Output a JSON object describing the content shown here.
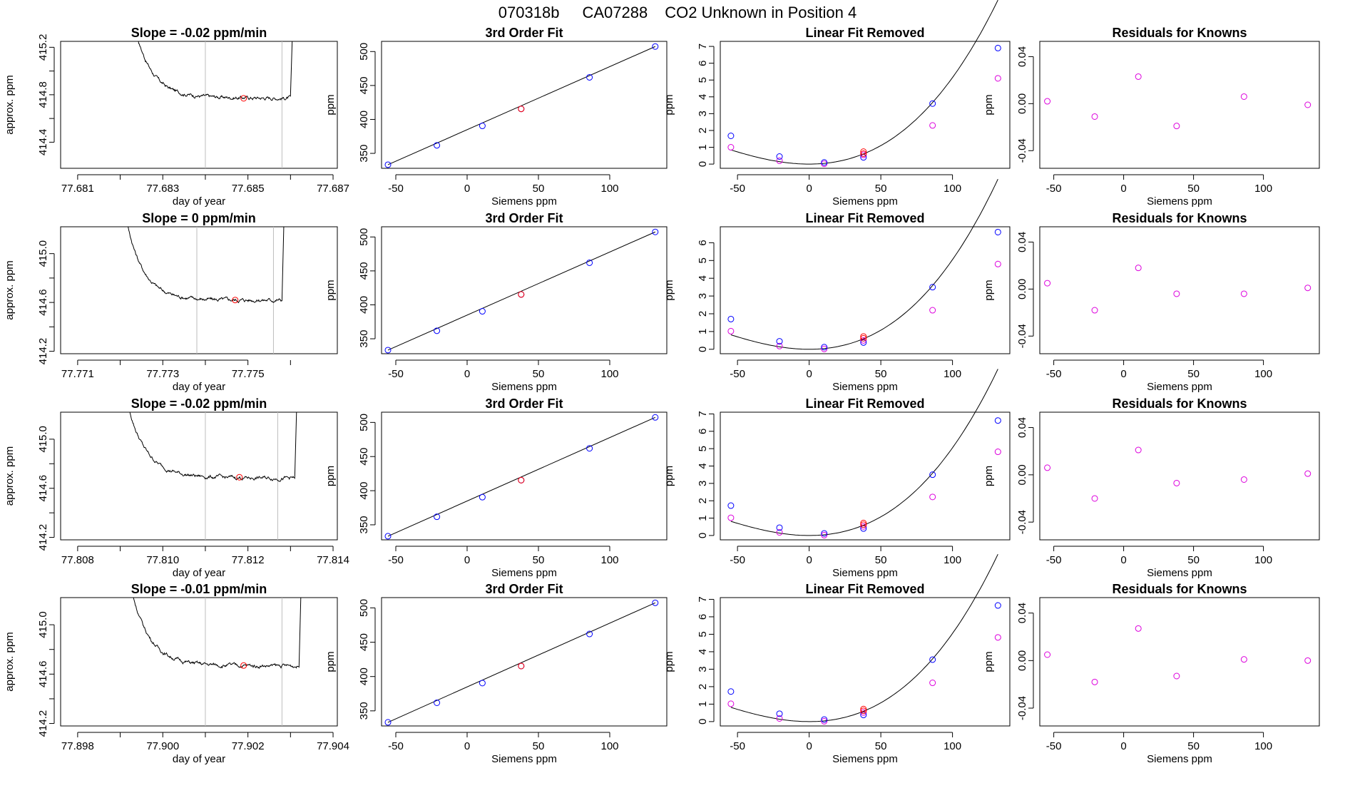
{
  "title": {
    "sample": "070318b",
    "tank": "CA07288",
    "description": "CO2 Unknown in Position  4"
  },
  "colors": {
    "blue": "#0000ff",
    "red": "#ff0000",
    "magenta": "#dd00dd",
    "gray": "#bdbdbd"
  },
  "chart_data": [
    {
      "row": 1,
      "panels": [
        {
          "type": "line",
          "title": "Slope =  -0.02  ppm/min",
          "xlabel": "day of year",
          "ylabel": "approx. ppm",
          "xlim": [
            77.6806,
            77.6871
          ],
          "ylim": [
            414.18,
            415.25
          ],
          "xticks": [
            "77.681",
            "77.683",
            "77.685",
            "77.687"
          ],
          "xtick_values": [
            77.681,
            77.683,
            77.685,
            77.687
          ],
          "minor_xticks": [
            77.682,
            77.684,
            77.686
          ],
          "yticks": [
            "414.4",
            "414.8",
            "415.2"
          ],
          "ytick_values": [
            414.4,
            414.8,
            415.2
          ],
          "extra_yticks": [
            414.6,
            415.0
          ],
          "t_start": 77.6822,
          "t_end": 77.686,
          "plateau": 414.78,
          "drop": 0.85,
          "trend": -0.02,
          "vlines": [
            77.684,
            77.6858
          ],
          "red_point": {
            "x": 77.6849,
            "y": 414.77
          }
        },
        {
          "type": "scatter",
          "title": "3rd Order Fit",
          "xlabel": "Siemens ppm",
          "ylabel": "ppm",
          "xlim": [
            -60,
            140
          ],
          "ylim": [
            328,
            515
          ],
          "xticks": [
            "-50",
            "0",
            "50",
            "100"
          ],
          "xtick_values": [
            -50,
            0,
            50,
            100
          ],
          "yticks": [
            "350",
            "400",
            "450",
            "500"
          ],
          "ytick_values": [
            350,
            400,
            450,
            500
          ],
          "knowns_x": [
            -55.5,
            -21.2,
            10.7,
            85.8,
            131.9
          ],
          "knowns_y": [
            333.3,
            361.8,
            390.5,
            462.0,
            507.4
          ],
          "unknown": {
            "x": 37.9,
            "y": 415.5
          }
        },
        {
          "type": "scatter",
          "title": "Linear Fit Removed",
          "xlabel": "Siemens ppm",
          "ylabel": "ppm",
          "xlim": [
            -62,
            140
          ],
          "ylim": [
            -0.25,
            7.3
          ],
          "xticks": [
            "-50",
            "0",
            "50",
            "100"
          ],
          "xtick_values": [
            -50,
            0,
            50,
            100
          ],
          "yticks": [
            "0",
            "1",
            "2",
            "3",
            "4",
            "5",
            "6",
            "7"
          ],
          "ytick_values": [
            0,
            1,
            2,
            3,
            4,
            5,
            6,
            7
          ],
          "curve": {
            "a": 0.000365,
            "b": 1.5e-06
          },
          "blue_x": [
            -54.6,
            -20.7,
            10.5,
            37.9,
            86.1,
            131.7
          ],
          "blue_y": [
            1.68,
            0.45,
            0.1,
            0.4,
            3.6,
            6.9
          ],
          "magenta_x": [
            -54.6,
            -20.7,
            10.5,
            37.9,
            86.1,
            131.7
          ],
          "magenta_y": [
            1.0,
            0.2,
            0.02,
            0.55,
            2.3,
            5.1
          ],
          "red_x": [
            37.9,
            37.9
          ],
          "red_y": [
            0.62,
            0.74
          ]
        },
        {
          "type": "scatter",
          "title": "Residuals for Knowns",
          "xlabel": "Siemens ppm",
          "ylabel": "ppm",
          "xlim": [
            -60,
            140
          ],
          "ylim": [
            -0.055,
            0.053
          ],
          "xticks": [
            "-50",
            "0",
            "50",
            "100"
          ],
          "xtick_values": [
            -50,
            0,
            50,
            100
          ],
          "yticks": [
            "-0.04",
            "0.00",
            "0.04"
          ],
          "ytick_values": [
            -0.04,
            0.0,
            0.04
          ],
          "x": [
            -54.6,
            -20.7,
            10.5,
            37.9,
            86.1,
            131.7
          ],
          "y": [
            0.002,
            -0.011,
            0.023,
            -0.019,
            0.006,
            -0.001
          ]
        }
      ]
    },
    {
      "row": 2,
      "panels": [
        {
          "type": "line",
          "title": "Slope =  0  ppm/min",
          "xlabel": "day of year",
          "ylabel": "approx. ppm",
          "xlim": [
            77.7706,
            77.7771
          ],
          "ylim": [
            414.18,
            415.22
          ],
          "xticks": [
            "77.771",
            "77.773",
            "77.775"
          ],
          "xtick_values": [
            77.771,
            77.773,
            77.775
          ],
          "minor_xticks": [
            77.772,
            77.774,
            77.776
          ],
          "yticks": [
            "414.2",
            "414.6",
            "415.0"
          ],
          "ytick_values": [
            414.2,
            414.6,
            415.0
          ],
          "extra_yticks": [
            414.4,
            414.8
          ],
          "t_start": 77.772,
          "t_end": 77.7758,
          "plateau": 414.62,
          "drop": 0.95,
          "trend": 0.0,
          "vlines": [
            77.7738,
            77.7756
          ],
          "red_point": {
            "x": 77.7747,
            "y": 414.62
          }
        },
        {
          "type": "scatter",
          "title": "3rd Order Fit",
          "xlabel": "Siemens ppm",
          "ylabel": "ppm",
          "xlim": [
            -60,
            140
          ],
          "ylim": [
            328,
            515
          ],
          "xticks": [
            "-50",
            "0",
            "50",
            "100"
          ],
          "xtick_values": [
            -50,
            0,
            50,
            100
          ],
          "yticks": [
            "350",
            "400",
            "450",
            "500"
          ],
          "ytick_values": [
            350,
            400,
            450,
            500
          ],
          "knowns_x": [
            -55.5,
            -21.2,
            10.7,
            85.8,
            131.9
          ],
          "knowns_y": [
            333.3,
            361.8,
            390.5,
            462.0,
            507.4
          ],
          "unknown": {
            "x": 37.9,
            "y": 415.3
          }
        },
        {
          "type": "scatter",
          "title": "Linear Fit Removed",
          "xlabel": "Siemens ppm",
          "ylabel": "ppm",
          "xlim": [
            -62,
            140
          ],
          "ylim": [
            -0.25,
            6.9
          ],
          "xticks": [
            "-50",
            "0",
            "50",
            "100"
          ],
          "xtick_values": [
            -50,
            0,
            50,
            100
          ],
          "yticks": [
            "0",
            "1",
            "2",
            "3",
            "4",
            "5",
            "6"
          ],
          "ytick_values": [
            0,
            1,
            2,
            3,
            4,
            5,
            6
          ],
          "curve": {
            "a": 0.000355,
            "b": 1.5e-06
          },
          "blue_x": [
            -54.6,
            -20.7,
            10.5,
            37.9,
            86.1,
            131.7
          ],
          "blue_y": [
            1.7,
            0.45,
            0.12,
            0.38,
            3.5,
            6.6
          ],
          "magenta_x": [
            -54.6,
            -20.7,
            10.5,
            37.9,
            86.1,
            131.7
          ],
          "magenta_y": [
            1.02,
            0.18,
            0.02,
            0.5,
            2.2,
            4.8
          ],
          "red_x": [
            37.9,
            37.9
          ],
          "red_y": [
            0.62,
            0.72
          ]
        },
        {
          "type": "scatter",
          "title": "Residuals for Knowns",
          "xlabel": "Siemens ppm",
          "ylabel": "ppm",
          "xlim": [
            -60,
            140
          ],
          "ylim": [
            -0.055,
            0.053
          ],
          "xticks": [
            "-50",
            "0",
            "50",
            "100"
          ],
          "xtick_values": [
            -50,
            0,
            50,
            100
          ],
          "yticks": [
            "-0.04",
            "0.00",
            "0.04"
          ],
          "ytick_values": [
            -0.04,
            0.0,
            0.04
          ],
          "x": [
            -54.6,
            -20.7,
            10.5,
            37.9,
            86.1,
            131.7
          ],
          "y": [
            0.005,
            -0.018,
            0.018,
            -0.004,
            -0.004,
            0.001
          ]
        }
      ]
    },
    {
      "row": 3,
      "panels": [
        {
          "type": "line",
          "title": "Slope =  -0.02  ppm/min",
          "xlabel": "day of year",
          "ylabel": "approx. ppm",
          "xlim": [
            77.8076,
            77.8141
          ],
          "ylim": [
            414.18,
            415.22
          ],
          "xticks": [
            "77.808",
            "77.810",
            "77.812",
            "77.814"
          ],
          "xtick_values": [
            77.808,
            77.81,
            77.812,
            77.814
          ],
          "minor_xticks": [
            77.809,
            77.811,
            77.813
          ],
          "yticks": [
            "414.2",
            "414.6",
            "415.0"
          ],
          "ytick_values": [
            414.2,
            414.6,
            415.0
          ],
          "extra_yticks": [
            414.4,
            414.8
          ],
          "t_start": 77.809,
          "t_end": 77.8131,
          "plateau": 414.69,
          "drop": 0.9,
          "trend": -0.02,
          "vlines": [
            77.811,
            77.8127
          ],
          "red_point": {
            "x": 77.8118,
            "y": 414.69
          }
        },
        {
          "type": "scatter",
          "title": "3rd Order Fit",
          "xlabel": "Siemens ppm",
          "ylabel": "ppm",
          "xlim": [
            -60,
            140
          ],
          "ylim": [
            328,
            515
          ],
          "xticks": [
            "-50",
            "0",
            "50",
            "100"
          ],
          "xtick_values": [
            -50,
            0,
            50,
            100
          ],
          "yticks": [
            "350",
            "400",
            "450",
            "500"
          ],
          "ytick_values": [
            350,
            400,
            450,
            500
          ],
          "knowns_x": [
            -55.5,
            -21.2,
            10.7,
            85.8,
            131.9
          ],
          "knowns_y": [
            333.3,
            361.8,
            390.5,
            462.0,
            507.4
          ],
          "unknown": {
            "x": 37.9,
            "y": 415.4
          }
        },
        {
          "type": "scatter",
          "title": "Linear Fit Removed",
          "xlabel": "Siemens ppm",
          "ylabel": "ppm",
          "xlim": [
            -62,
            140
          ],
          "ylim": [
            -0.25,
            7.1
          ],
          "xticks": [
            "-50",
            "0",
            "50",
            "100"
          ],
          "xtick_values": [
            -50,
            0,
            50,
            100
          ],
          "yticks": [
            "0",
            "1",
            "2",
            "3",
            "4",
            "5",
            "6",
            "7"
          ],
          "ytick_values": [
            0,
            1,
            2,
            3,
            4,
            5,
            6,
            7
          ],
          "curve": {
            "a": 0.000355,
            "b": 1.5e-06
          },
          "blue_x": [
            -54.6,
            -20.7,
            10.5,
            37.9,
            86.1,
            131.7
          ],
          "blue_y": [
            1.72,
            0.45,
            0.12,
            0.4,
            3.5,
            6.62
          ],
          "magenta_x": [
            -54.6,
            -20.7,
            10.5,
            37.9,
            86.1,
            131.7
          ],
          "magenta_y": [
            1.02,
            0.18,
            0.02,
            0.52,
            2.22,
            4.82
          ],
          "red_x": [
            37.9,
            37.9
          ],
          "red_y": [
            0.62,
            0.72
          ]
        },
        {
          "type": "scatter",
          "title": "Residuals for Knowns",
          "xlabel": "Siemens ppm",
          "ylabel": "ppm",
          "xlim": [
            -60,
            140
          ],
          "ylim": [
            -0.055,
            0.053
          ],
          "xticks": [
            "-50",
            "0",
            "50",
            "100"
          ],
          "xtick_values": [
            -50,
            0,
            50,
            100
          ],
          "yticks": [
            "-0.04",
            "0.00",
            "0.04"
          ],
          "ytick_values": [
            -0.04,
            0.0,
            0.04
          ],
          "x": [
            -54.6,
            -20.7,
            10.5,
            37.9,
            86.1,
            131.7
          ],
          "y": [
            0.006,
            -0.02,
            0.021,
            -0.007,
            -0.004,
            0.001
          ]
        }
      ]
    },
    {
      "row": 4,
      "panels": [
        {
          "type": "line",
          "title": "Slope =  -0.01  ppm/min",
          "xlabel": "day of year",
          "ylabel": "approx. ppm",
          "xlim": [
            77.8976,
            77.9041
          ],
          "ylim": [
            414.18,
            415.22
          ],
          "xticks": [
            "77.898",
            "77.900",
            "77.902",
            "77.904"
          ],
          "xtick_values": [
            77.898,
            77.9,
            77.902,
            77.904
          ],
          "minor_xticks": [
            77.899,
            77.901,
            77.903
          ],
          "yticks": [
            "414.2",
            "414.6",
            "415.0"
          ],
          "ytick_values": [
            414.2,
            414.6,
            415.0
          ],
          "extra_yticks": [
            414.4,
            414.8
          ],
          "t_start": 77.8991,
          "t_end": 77.9032,
          "plateau": 414.67,
          "drop": 0.9,
          "trend": -0.01,
          "vlines": [
            77.901,
            77.9028
          ],
          "red_point": {
            "x": 77.9019,
            "y": 414.67
          }
        },
        {
          "type": "scatter",
          "title": "3rd Order Fit",
          "xlabel": "Siemens ppm",
          "ylabel": "ppm",
          "xlim": [
            -60,
            140
          ],
          "ylim": [
            328,
            515
          ],
          "xticks": [
            "-50",
            "0",
            "50",
            "100"
          ],
          "xtick_values": [
            -50,
            0,
            50,
            100
          ],
          "yticks": [
            "350",
            "400",
            "450",
            "500"
          ],
          "ytick_values": [
            350,
            400,
            450,
            500
          ],
          "knowns_x": [
            -55.5,
            -21.2,
            10.7,
            85.8,
            131.9
          ],
          "knowns_y": [
            333.3,
            361.8,
            390.5,
            462.0,
            507.4
          ],
          "unknown": {
            "x": 37.9,
            "y": 415.3
          }
        },
        {
          "type": "scatter",
          "title": "Linear Fit Removed",
          "xlabel": "Siemens ppm",
          "ylabel": "ppm",
          "xlim": [
            -62,
            140
          ],
          "ylim": [
            -0.25,
            7.1
          ],
          "xticks": [
            "-50",
            "0",
            "50",
            "100"
          ],
          "xtick_values": [
            -50,
            0,
            50,
            100
          ],
          "yticks": [
            "0",
            "1",
            "2",
            "3",
            "4",
            "5",
            "6",
            "7"
          ],
          "ytick_values": [
            0,
            1,
            2,
            3,
            4,
            5,
            6,
            7
          ],
          "curve": {
            "a": 0.000355,
            "b": 1.5e-06
          },
          "blue_x": [
            -54.6,
            -20.7,
            10.5,
            37.9,
            86.1,
            131.7
          ],
          "blue_y": [
            1.72,
            0.45,
            0.12,
            0.38,
            3.55,
            6.65
          ],
          "magenta_x": [
            -54.6,
            -20.7,
            10.5,
            37.9,
            86.1,
            131.7
          ],
          "magenta_y": [
            1.02,
            0.18,
            0.02,
            0.52,
            2.22,
            4.82
          ],
          "red_x": [
            37.9,
            37.9
          ],
          "red_y": [
            0.62,
            0.72
          ]
        },
        {
          "type": "scatter",
          "title": "Residuals for Knowns",
          "xlabel": "Siemens ppm",
          "ylabel": "ppm",
          "xlim": [
            -60,
            140
          ],
          "ylim": [
            -0.055,
            0.053
          ],
          "xticks": [
            "-50",
            "0",
            "50",
            "100"
          ],
          "xtick_values": [
            -50,
            0,
            50,
            100
          ],
          "yticks": [
            "-0.04",
            "0.00",
            "0.04"
          ],
          "ytick_values": [
            -0.04,
            0.0,
            0.04
          ],
          "x": [
            -54.6,
            -20.7,
            10.5,
            37.9,
            86.1,
            131.7
          ],
          "y": [
            0.005,
            -0.018,
            0.027,
            -0.013,
            0.001,
            0.0
          ]
        }
      ]
    }
  ]
}
